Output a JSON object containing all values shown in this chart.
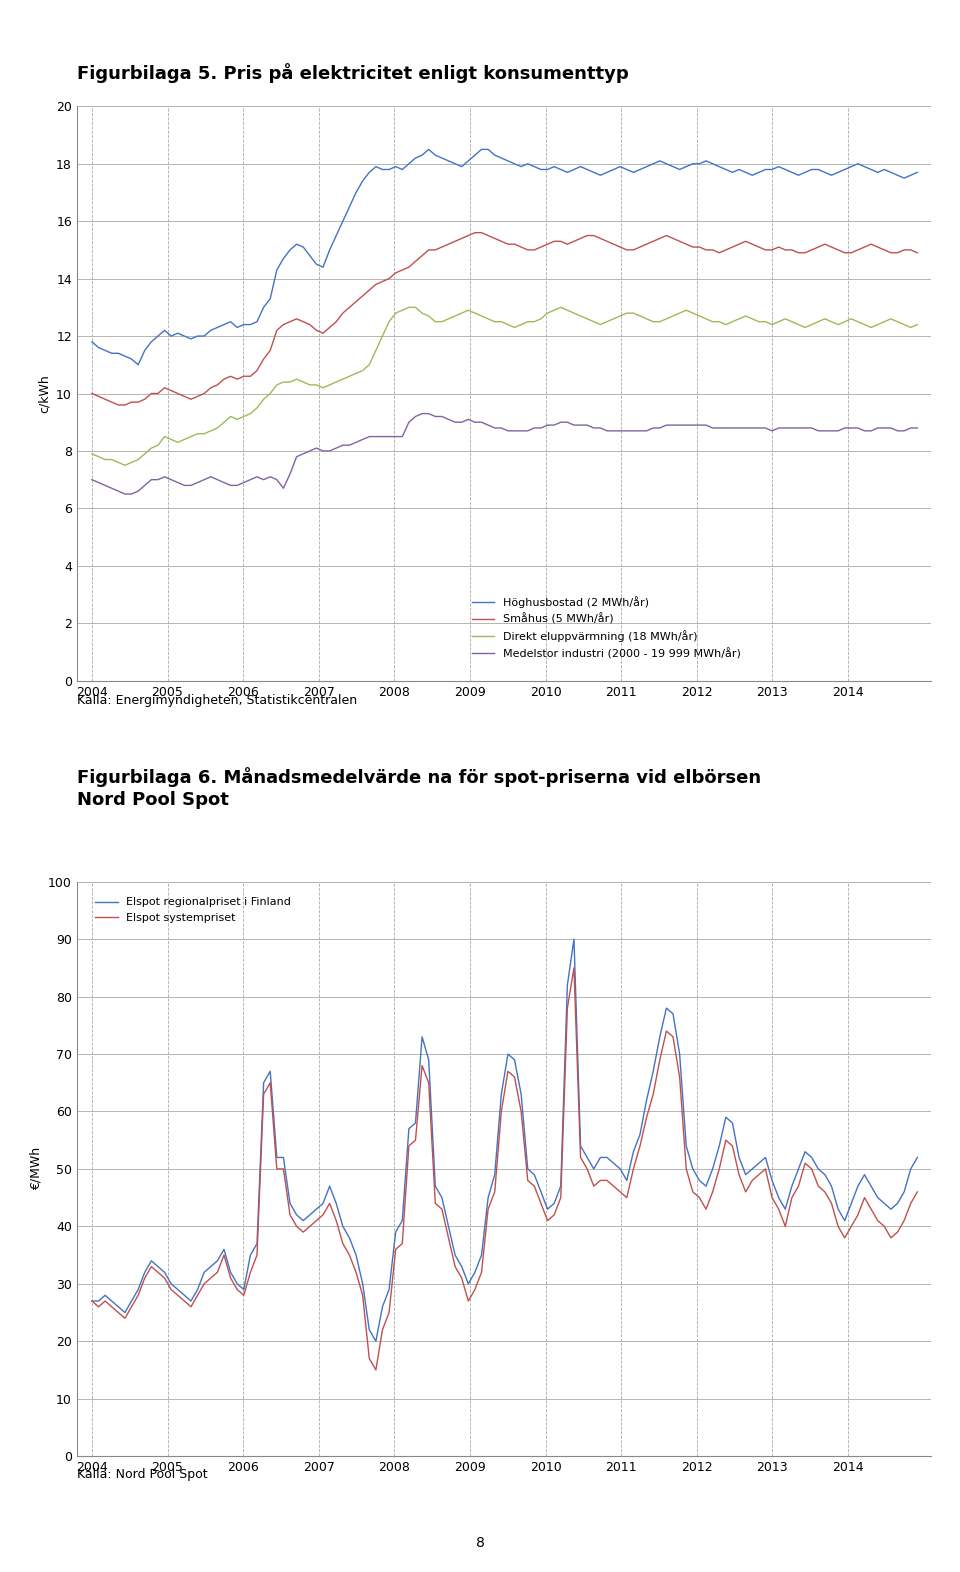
{
  "fig1_title": "Figurbilaga 5. Pris på elektricitet enligt konsumenttyp",
  "fig1_ylabel": "c/kWh",
  "fig1_ylim": [
    0,
    20
  ],
  "fig1_yticks": [
    0,
    2,
    4,
    6,
    8,
    10,
    12,
    14,
    16,
    18,
    20
  ],
  "fig1_source": "Källa: Energimyndigheten, Statistikcentralen",
  "fig2_title_line1": "Figurbilaga 6. Månadsmedelvärde na för spot-priserna vid elbörsen",
  "fig2_title_line2": "Nord Pool Spot",
  "fig2_ylabel": "€/MWh",
  "fig2_ylim": [
    0,
    100
  ],
  "fig2_yticks": [
    0,
    10,
    20,
    30,
    40,
    50,
    60,
    70,
    80,
    90,
    100
  ],
  "fig2_source": "Källa: Nord Pool Spot",
  "page_number": "8",
  "blue_color": "#4472C4",
  "red_color": "#C0504D",
  "green_color": "#9BBB59",
  "purple_color": "#8064A2",
  "legend1": [
    "Höghusbostad (2 MWh/år)",
    "Småhus (5 MWh/år)",
    "Direkt eluppvärmning (18 MWh/år)",
    "Medelstor industri (2000 - 19 999 MWh/år)"
  ],
  "legend2": [
    "Elspot regionalpriset i Finland",
    "Elspot systempriset"
  ],
  "x_years": [
    2004,
    2005,
    2006,
    2007,
    2008,
    2009,
    2010,
    2011,
    2012,
    2013,
    2014
  ],
  "fig1_blue": [
    11.8,
    11.6,
    11.5,
    11.4,
    11.4,
    11.3,
    11.2,
    11.0,
    11.5,
    11.8,
    12.0,
    12.2,
    12.0,
    12.1,
    12.0,
    11.9,
    12.0,
    12.0,
    12.2,
    12.3,
    12.4,
    12.5,
    12.3,
    12.4,
    12.4,
    12.5,
    13.0,
    13.3,
    14.3,
    14.7,
    15.0,
    15.2,
    15.1,
    14.8,
    14.5,
    14.4,
    15.0,
    15.5,
    16.0,
    16.5,
    17.0,
    17.4,
    17.7,
    17.9,
    17.8,
    17.8,
    17.9,
    17.8,
    18.0,
    18.2,
    18.3,
    18.5,
    18.3,
    18.2,
    18.1,
    18.0,
    17.9,
    18.1,
    18.3,
    18.5,
    18.5,
    18.3,
    18.2,
    18.1,
    18.0,
    17.9,
    18.0,
    17.9,
    17.8,
    17.8,
    17.9,
    17.8,
    17.7,
    17.8,
    17.9,
    17.8,
    17.7,
    17.6,
    17.7,
    17.8,
    17.9,
    17.8,
    17.7,
    17.8,
    17.9,
    18.0,
    18.1,
    18.0,
    17.9,
    17.8,
    17.9,
    18.0,
    18.0,
    18.1,
    18.0,
    17.9,
    17.8,
    17.7,
    17.8,
    17.7,
    17.6,
    17.7,
    17.8,
    17.8,
    17.9,
    17.8,
    17.7,
    17.6,
    17.7,
    17.8,
    17.8,
    17.7,
    17.6,
    17.7,
    17.8,
    17.9,
    18.0,
    17.9,
    17.8,
    17.7,
    17.8,
    17.7,
    17.6,
    17.5,
    17.6,
    17.7
  ],
  "fig1_red": [
    10.0,
    9.9,
    9.8,
    9.7,
    9.6,
    9.6,
    9.7,
    9.7,
    9.8,
    10.0,
    10.0,
    10.2,
    10.1,
    10.0,
    9.9,
    9.8,
    9.9,
    10.0,
    10.2,
    10.3,
    10.5,
    10.6,
    10.5,
    10.6,
    10.6,
    10.8,
    11.2,
    11.5,
    12.2,
    12.4,
    12.5,
    12.6,
    12.5,
    12.4,
    12.2,
    12.1,
    12.3,
    12.5,
    12.8,
    13.0,
    13.2,
    13.4,
    13.6,
    13.8,
    13.9,
    14.0,
    14.2,
    14.3,
    14.4,
    14.6,
    14.8,
    15.0,
    15.0,
    15.1,
    15.2,
    15.3,
    15.4,
    15.5,
    15.6,
    15.6,
    15.5,
    15.4,
    15.3,
    15.2,
    15.2,
    15.1,
    15.0,
    15.0,
    15.1,
    15.2,
    15.3,
    15.3,
    15.2,
    15.3,
    15.4,
    15.5,
    15.5,
    15.4,
    15.3,
    15.2,
    15.1,
    15.0,
    15.0,
    15.1,
    15.2,
    15.3,
    15.4,
    15.5,
    15.4,
    15.3,
    15.2,
    15.1,
    15.1,
    15.0,
    15.0,
    14.9,
    15.0,
    15.1,
    15.2,
    15.3,
    15.2,
    15.1,
    15.0,
    15.0,
    15.1,
    15.0,
    15.0,
    14.9,
    14.9,
    15.0,
    15.1,
    15.2,
    15.1,
    15.0,
    14.9,
    14.9,
    15.0,
    15.1,
    15.2,
    15.1,
    15.0,
    14.9,
    14.9,
    15.0,
    15.0,
    14.9
  ],
  "fig1_green": [
    7.9,
    7.8,
    7.7,
    7.7,
    7.6,
    7.5,
    7.6,
    7.7,
    7.9,
    8.1,
    8.2,
    8.5,
    8.4,
    8.3,
    8.4,
    8.5,
    8.6,
    8.6,
    8.7,
    8.8,
    9.0,
    9.2,
    9.1,
    9.2,
    9.3,
    9.5,
    9.8,
    10.0,
    10.3,
    10.4,
    10.4,
    10.5,
    10.4,
    10.3,
    10.3,
    10.2,
    10.3,
    10.4,
    10.5,
    10.6,
    10.7,
    10.8,
    11.0,
    11.5,
    12.0,
    12.5,
    12.8,
    12.9,
    13.0,
    13.0,
    12.8,
    12.7,
    12.5,
    12.5,
    12.6,
    12.7,
    12.8,
    12.9,
    12.8,
    12.7,
    12.6,
    12.5,
    12.5,
    12.4,
    12.3,
    12.4,
    12.5,
    12.5,
    12.6,
    12.8,
    12.9,
    13.0,
    12.9,
    12.8,
    12.7,
    12.6,
    12.5,
    12.4,
    12.5,
    12.6,
    12.7,
    12.8,
    12.8,
    12.7,
    12.6,
    12.5,
    12.5,
    12.6,
    12.7,
    12.8,
    12.9,
    12.8,
    12.7,
    12.6,
    12.5,
    12.5,
    12.4,
    12.5,
    12.6,
    12.7,
    12.6,
    12.5,
    12.5,
    12.4,
    12.5,
    12.6,
    12.5,
    12.4,
    12.3,
    12.4,
    12.5,
    12.6,
    12.5,
    12.4,
    12.5,
    12.6,
    12.5,
    12.4,
    12.3,
    12.4,
    12.5,
    12.6,
    12.5,
    12.4,
    12.3,
    12.4
  ],
  "fig1_purple": [
    7.0,
    6.9,
    6.8,
    6.7,
    6.6,
    6.5,
    6.5,
    6.6,
    6.8,
    7.0,
    7.0,
    7.1,
    7.0,
    6.9,
    6.8,
    6.8,
    6.9,
    7.0,
    7.1,
    7.0,
    6.9,
    6.8,
    6.8,
    6.9,
    7.0,
    7.1,
    7.0,
    7.1,
    7.0,
    6.7,
    7.2,
    7.8,
    7.9,
    8.0,
    8.1,
    8.0,
    8.0,
    8.1,
    8.2,
    8.2,
    8.3,
    8.4,
    8.5,
    8.5,
    8.5,
    8.5,
    8.5,
    8.5,
    9.0,
    9.2,
    9.3,
    9.3,
    9.2,
    9.2,
    9.1,
    9.0,
    9.0,
    9.1,
    9.0,
    9.0,
    8.9,
    8.8,
    8.8,
    8.7,
    8.7,
    8.7,
    8.7,
    8.8,
    8.8,
    8.9,
    8.9,
    9.0,
    9.0,
    8.9,
    8.9,
    8.9,
    8.8,
    8.8,
    8.7,
    8.7,
    8.7,
    8.7,
    8.7,
    8.7,
    8.7,
    8.8,
    8.8,
    8.9,
    8.9,
    8.9,
    8.9,
    8.9,
    8.9,
    8.9,
    8.8,
    8.8,
    8.8,
    8.8,
    8.8,
    8.8,
    8.8,
    8.8,
    8.8,
    8.7,
    8.8,
    8.8,
    8.8,
    8.8,
    8.8,
    8.8,
    8.7,
    8.7,
    8.7,
    8.7,
    8.8,
    8.8,
    8.8,
    8.7,
    8.7,
    8.8,
    8.8,
    8.8,
    8.7,
    8.7,
    8.8,
    8.8
  ],
  "fig2_finland": [
    27,
    27,
    28,
    27,
    26,
    25,
    27,
    29,
    32,
    34,
    33,
    32,
    30,
    29,
    28,
    27,
    29,
    32,
    33,
    34,
    36,
    32,
    30,
    29,
    35,
    37,
    65,
    67,
    52,
    52,
    44,
    42,
    41,
    42,
    43,
    44,
    47,
    44,
    40,
    38,
    35,
    30,
    22,
    20,
    26,
    29,
    39,
    41,
    57,
    58,
    73,
    69,
    47,
    45,
    40,
    35,
    33,
    30,
    32,
    35,
    45,
    49,
    63,
    70,
    69,
    63,
    50,
    49,
    46,
    43,
    44,
    47,
    82,
    90,
    54,
    52,
    50,
    52,
    52,
    51,
    50,
    48,
    53,
    56,
    62,
    67,
    73,
    78,
    77,
    70,
    54,
    50,
    48,
    47,
    50,
    54,
    59,
    58,
    52,
    49,
    50,
    51,
    52,
    48,
    45,
    43,
    47,
    50,
    53,
    52,
    50,
    49,
    47,
    43,
    41,
    44,
    47,
    49,
    47,
    45,
    44,
    43,
    44,
    46,
    50,
    52
  ],
  "fig2_system": [
    27,
    26,
    27,
    26,
    25,
    24,
    26,
    28,
    31,
    33,
    32,
    31,
    29,
    28,
    27,
    26,
    28,
    30,
    31,
    32,
    35,
    31,
    29,
    28,
    32,
    35,
    63,
    65,
    50,
    50,
    42,
    40,
    39,
    40,
    41,
    42,
    44,
    41,
    37,
    35,
    32,
    28,
    17,
    15,
    22,
    25,
    36,
    37,
    54,
    55,
    68,
    65,
    44,
    43,
    38,
    33,
    31,
    27,
    29,
    32,
    43,
    46,
    60,
    67,
    66,
    60,
    48,
    47,
    44,
    41,
    42,
    45,
    78,
    85,
    52,
    50,
    47,
    48,
    48,
    47,
    46,
    45,
    50,
    54,
    59,
    63,
    69,
    74,
    73,
    66,
    50,
    46,
    45,
    43,
    46,
    50,
    55,
    54,
    49,
    46,
    48,
    49,
    50,
    45,
    43,
    40,
    45,
    47,
    51,
    50,
    47,
    46,
    44,
    40,
    38,
    40,
    42,
    45,
    43,
    41,
    40,
    38,
    39,
    41,
    44,
    46
  ]
}
